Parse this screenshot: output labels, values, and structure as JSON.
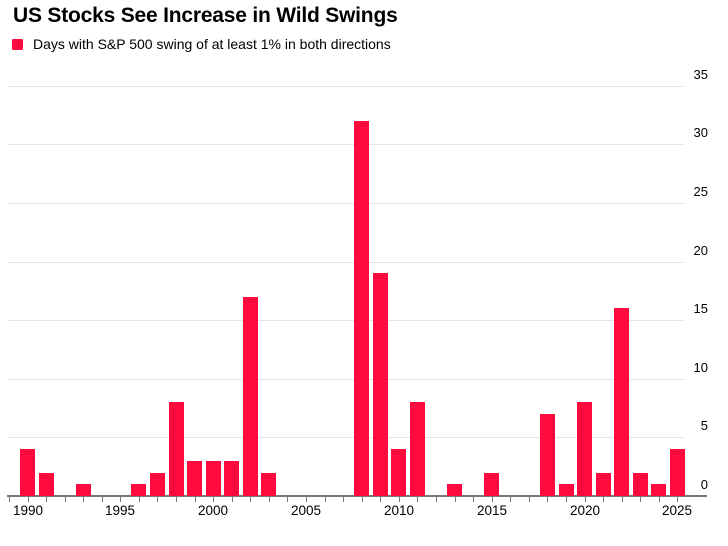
{
  "header": {
    "title": "US Stocks See Increase in Wild Swings"
  },
  "legend": {
    "swatch_icon": "red-square-icon",
    "label": "Days with S&P 500 swing of at least 1% in both directions"
  },
  "colors": {
    "bar": "#FF0A3F",
    "gridline": "#E5E5E5",
    "axis": "#76777A",
    "text": "#000000",
    "background": "#FFFFFF"
  },
  "chart_data": {
    "type": "bar",
    "title": "US Stocks See Increase in Wild Swings",
    "series": [
      {
        "name": "Days with S&P 500 swing of at least 1% in both directions",
        "values": [
          4,
          2,
          0,
          1,
          0,
          0,
          1,
          2,
          8,
          3,
          3,
          3,
          17,
          2,
          0,
          0,
          0,
          0,
          32,
          19,
          4,
          8,
          0,
          1,
          0,
          2,
          0,
          0,
          7,
          1,
          8,
          2,
          16,
          2,
          1,
          4
        ]
      }
    ],
    "x": [
      1990,
      1991,
      1992,
      1993,
      1994,
      1995,
      1996,
      1997,
      1998,
      1999,
      2000,
      2001,
      2002,
      2003,
      2004,
      2005,
      2006,
      2007,
      2008,
      2009,
      2010,
      2011,
      2012,
      2013,
      2014,
      2015,
      2016,
      2017,
      2018,
      2019,
      2020,
      2021,
      2022,
      2023,
      2024,
      2025
    ],
    "xlabel": "",
    "ylabel": "",
    "ylim": [
      0,
      35
    ],
    "y_ticks": [
      0,
      5,
      10,
      15,
      20,
      25,
      30,
      35
    ],
    "x_tick_labels": [
      "1990",
      "1995",
      "2000",
      "2005",
      "2010",
      "2015",
      "2020",
      "2025"
    ],
    "x_minor_ticks_every_year": true,
    "grid": "horizontal",
    "y_axis_side": "right",
    "legend_position": "top-left"
  }
}
